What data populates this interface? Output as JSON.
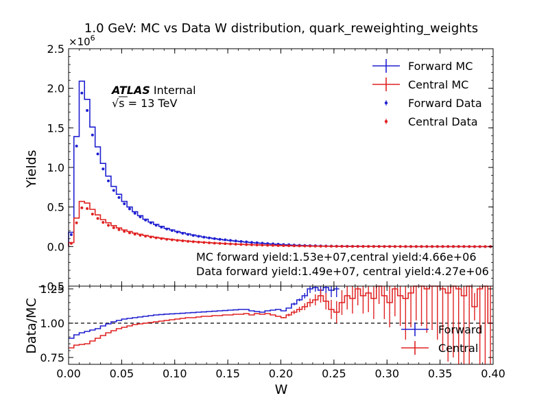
{
  "chart_data": [
    {
      "type": "line",
      "panel": "main",
      "title": "1.0 GeV: MC vs Data W distribution, quark_reweighting_weights",
      "ylabel": "Yields",
      "y_multiplier": "×10",
      "y_multiplier_exp": "6",
      "ylim": [
        -0.5,
        2.5
      ],
      "xlim": [
        0.0,
        0.4
      ],
      "yticks": [
        "−0.5",
        "0.0",
        "0.5",
        "1.0",
        "1.5",
        "2.0",
        "2.5"
      ],
      "ytick_values": [
        -0.5,
        0.0,
        0.5,
        1.0,
        1.5,
        2.0,
        2.5
      ],
      "bin_edges": [
        0.0,
        0.005,
        0.01,
        0.015,
        0.02,
        0.025,
        0.03,
        0.035,
        0.04,
        0.045,
        0.05,
        0.055,
        0.06,
        0.065,
        0.07,
        0.075,
        0.08,
        0.085,
        0.09,
        0.095,
        0.1,
        0.105,
        0.11,
        0.115,
        0.12,
        0.125,
        0.13,
        0.135,
        0.14,
        0.145,
        0.15,
        0.155,
        0.16,
        0.165,
        0.17,
        0.175,
        0.18,
        0.185,
        0.19,
        0.195,
        0.2,
        0.205,
        0.21,
        0.215,
        0.22,
        0.225,
        0.23,
        0.235,
        0.24,
        0.245,
        0.25,
        0.255,
        0.26,
        0.265,
        0.27,
        0.275,
        0.28,
        0.285,
        0.29,
        0.295,
        0.3,
        0.305,
        0.31,
        0.315,
        0.32,
        0.325,
        0.33,
        0.335,
        0.34,
        0.345,
        0.35,
        0.355,
        0.36,
        0.365,
        0.37,
        0.375,
        0.38,
        0.385,
        0.39,
        0.395,
        0.4
      ],
      "series": [
        {
          "name": "Forward MC",
          "kind": "step",
          "color": "#1f1fd0",
          "values": [
            0.18,
            1.39,
            2.09,
            1.86,
            1.51,
            1.26,
            1.05,
            0.89,
            0.76,
            0.66,
            0.57,
            0.5,
            0.44,
            0.39,
            0.345,
            0.31,
            0.28,
            0.255,
            0.23,
            0.21,
            0.19,
            0.175,
            0.16,
            0.145,
            0.133,
            0.12,
            0.11,
            0.1,
            0.091,
            0.083,
            0.076,
            0.069,
            0.062,
            0.056,
            0.05,
            0.045,
            0.04,
            0.035,
            0.031,
            0.027,
            0.023,
            0.02,
            0.017,
            0.014,
            0.012,
            0.01,
            0.008,
            0.007,
            0.006,
            0.005,
            0.004,
            0.0035,
            0.003,
            0.0025,
            0.002,
            0.0018,
            0.0015,
            0.0013,
            0.0011,
            0.001,
            0.0009,
            0.0008,
            0.0007,
            0.0006,
            0.0005,
            0.0005,
            0.0004,
            0.0004,
            0.0003,
            0.0003,
            0.0003,
            0.0002,
            0.0002,
            0.0002,
            0.0002,
            0.0001,
            0.0001,
            0.0001,
            0.0001,
            0.0001
          ]
        },
        {
          "name": "Central MC",
          "kind": "step",
          "color": "#e02020",
          "values": [
            0.05,
            0.36,
            0.57,
            0.55,
            0.47,
            0.4,
            0.34,
            0.3,
            0.265,
            0.235,
            0.21,
            0.19,
            0.17,
            0.155,
            0.14,
            0.128,
            0.116,
            0.106,
            0.097,
            0.089,
            0.082,
            0.075,
            0.069,
            0.063,
            0.058,
            0.053,
            0.049,
            0.045,
            0.041,
            0.037,
            0.034,
            0.031,
            0.028,
            0.025,
            0.023,
            0.021,
            0.019,
            0.017,
            0.015,
            0.013,
            0.012,
            0.01,
            0.009,
            0.008,
            0.007,
            0.006,
            0.005,
            0.0045,
            0.004,
            0.0035,
            0.003,
            0.0026,
            0.0023,
            0.002,
            0.0018,
            0.0016,
            0.0014,
            0.0012,
            0.0011,
            0.001,
            0.0009,
            0.0008,
            0.0007,
            0.0006,
            0.0005,
            0.0005,
            0.0004,
            0.0004,
            0.0003,
            0.0003,
            0.0003,
            0.0002,
            0.0002,
            0.0002,
            0.0002,
            0.0001,
            0.0001,
            0.0001,
            0.0001,
            0.0001
          ]
        },
        {
          "name": "Forward Data",
          "kind": "points",
          "color": "#1f1fd0",
          "values": [
            0.15,
            1.27,
            1.94,
            1.72,
            1.41,
            1.17,
            0.98,
            0.83,
            0.71,
            0.62,
            0.54,
            0.475,
            0.42,
            0.375,
            0.335,
            0.3,
            0.27,
            0.245,
            0.222,
            0.202,
            0.184,
            0.168,
            0.154,
            0.141,
            0.13,
            0.119,
            0.109,
            0.1,
            0.092,
            0.085,
            0.078,
            0.071,
            0.065,
            0.059,
            0.053,
            0.048,
            0.043,
            0.038,
            0.034,
            0.03,
            0.026,
            0.023,
            0.019,
            0.016,
            0.014,
            0.012,
            0.01,
            0.0085,
            0.007,
            0.006,
            0.005,
            0.004,
            0.0035,
            0.003,
            0.0025,
            0.002,
            0.0018,
            0.0015,
            0.0013,
            0.0011,
            0.001,
            0.0009,
            0.0008,
            0.0007,
            0.0006,
            0.0005,
            0.0005,
            0.0004,
            0.0004,
            0.0003,
            0.0003,
            0.0003,
            0.0002,
            0.0002,
            0.0002,
            0.0002,
            0.0001,
            0.0001,
            0.0001,
            0.0001
          ]
        },
        {
          "name": "Central Data",
          "kind": "points",
          "color": "#e02020",
          "values": [
            0.04,
            0.3,
            0.49,
            0.48,
            0.41,
            0.355,
            0.305,
            0.268,
            0.238,
            0.213,
            0.191,
            0.173,
            0.157,
            0.143,
            0.131,
            0.12,
            0.11,
            0.1,
            0.092,
            0.085,
            0.078,
            0.072,
            0.066,
            0.061,
            0.056,
            0.052,
            0.047,
            0.043,
            0.04,
            0.036,
            0.033,
            0.03,
            0.027,
            0.025,
            0.022,
            0.02,
            0.018,
            0.016,
            0.015,
            0.013,
            0.012,
            0.01,
            0.009,
            0.008,
            0.007,
            0.006,
            0.005,
            0.0045,
            0.004,
            0.0035,
            0.003,
            0.0026,
            0.0023,
            0.002,
            0.0018,
            0.0016,
            0.0014,
            0.0012,
            0.0011,
            0.001,
            0.0009,
            0.0008,
            0.0007,
            0.0006,
            0.0005,
            0.0005,
            0.0004,
            0.0004,
            0.0003,
            0.0003,
            0.0003,
            0.0002,
            0.0002,
            0.0002,
            0.0002,
            0.0001,
            0.0001,
            0.0001,
            0.0001,
            0.0001
          ]
        }
      ],
      "legend": {
        "placement": "top-right",
        "entries": [
          "Forward MC",
          "Central MC",
          "Forward Data",
          "Central Data"
        ]
      },
      "atlas_label": "ATLAS",
      "atlas_sublabel": "Internal",
      "energy_label_sqrt": "√s",
      "energy_label_rest": " =  13 TeV",
      "annotations": [
        "MC forward yield:1.53e+07,central yield:4.66e+06",
        "Data forward yield:1.49e+07, central yield:4.27e+06"
      ]
    },
    {
      "type": "line",
      "panel": "ratio",
      "xlabel": "W",
      "ylabel": "Data/MC",
      "xlim": [
        0.0,
        0.4
      ],
      "ylim": [
        0.7,
        1.27
      ],
      "xticks": [
        "0.00",
        "0.05",
        "0.10",
        "0.15",
        "0.20",
        "0.25",
        "0.30",
        "0.35",
        "0.40"
      ],
      "xtick_values": [
        0.0,
        0.05,
        0.1,
        0.15,
        0.2,
        0.25,
        0.3,
        0.35,
        0.4
      ],
      "yticks": [
        "0.75",
        "1.00",
        "1.25"
      ],
      "ytick_values": [
        0.75,
        1.0,
        1.25
      ],
      "reference_line": 1.0,
      "series": [
        {
          "name": "Forward",
          "color": "#1f1fd0",
          "values": [
            0.89,
            0.915,
            0.93,
            0.94,
            0.95,
            0.96,
            0.98,
            0.995,
            1.01,
            1.02,
            1.03,
            1.035,
            1.04,
            1.045,
            1.05,
            1.055,
            1.06,
            1.063,
            1.066,
            1.068,
            1.07,
            1.072,
            1.075,
            1.077,
            1.08,
            1.082,
            1.085,
            1.087,
            1.09,
            1.092,
            1.095,
            1.097,
            1.1,
            1.1,
            1.09,
            1.085,
            1.08,
            1.09,
            1.095,
            1.1,
            1.09,
            1.11,
            1.14,
            1.17,
            1.2,
            1.25,
            1.26,
            1.24,
            1.26,
            1.24,
            1.25,
            null,
            null,
            null,
            null,
            null,
            null,
            null,
            null,
            null,
            null,
            null,
            null,
            null,
            null,
            null,
            null,
            null,
            null,
            null,
            null,
            null,
            null,
            null,
            null,
            null,
            null,
            null,
            null,
            null
          ],
          "errors": [
            0,
            0,
            0,
            0,
            0,
            0,
            0,
            0,
            0,
            0,
            0,
            0,
            0,
            0,
            0,
            0,
            0,
            0,
            0,
            0,
            0,
            0,
            0,
            0,
            0,
            0,
            0,
            0,
            0,
            0,
            0,
            0,
            0,
            0,
            0,
            0,
            0,
            0,
            0,
            0,
            0,
            0,
            0.01,
            0.01,
            0.02,
            0.03,
            0.03,
            0.04,
            0.05,
            0.05,
            0.06,
            0,
            0,
            0,
            0,
            0,
            0,
            0,
            0,
            0,
            0,
            0,
            0,
            0,
            0,
            0,
            0,
            0,
            0,
            0,
            0,
            0,
            0,
            0,
            0,
            0,
            0,
            0,
            0,
            0
          ]
        },
        {
          "name": "Central",
          "color": "#e02020",
          "values": [
            0.82,
            0.84,
            0.845,
            0.85,
            0.87,
            0.89,
            0.91,
            0.93,
            0.945,
            0.96,
            0.97,
            0.98,
            0.99,
            0.995,
            1.0,
            1.005,
            1.01,
            1.015,
            1.02,
            1.025,
            1.03,
            1.035,
            1.04,
            1.04,
            1.045,
            1.05,
            1.05,
            1.055,
            1.055,
            1.06,
            1.06,
            1.065,
            1.065,
            1.07,
            1.06,
            1.07,
            1.065,
            1.07,
            1.06,
            1.05,
            1.04,
            1.06,
            1.08,
            1.1,
            1.12,
            1.15,
            1.17,
            1.2,
            1.16,
            1.1,
            1.08,
            1.15,
            1.2,
            1.18,
            1.25,
            1.2,
            1.22,
            1.18,
            1.3,
            1.2,
            1.15,
            1.25,
            1.2,
            1.18,
            1.22,
            1.3,
            1.28,
            1.25,
            1.3,
            1.28,
            1.25,
            1.22,
            1.3,
            1.25,
            1.2,
            1.28,
            1.12,
            1.25,
            1.3,
            1.0
          ],
          "errors": [
            0,
            0,
            0,
            0,
            0,
            0,
            0,
            0,
            0,
            0,
            0,
            0,
            0,
            0,
            0,
            0,
            0,
            0,
            0,
            0,
            0,
            0,
            0,
            0,
            0,
            0,
            0,
            0,
            0,
            0,
            0,
            0,
            0,
            0,
            0,
            0,
            0,
            0,
            0,
            0,
            0.005,
            0.01,
            0.015,
            0.02,
            0.025,
            0.03,
            0.04,
            0.05,
            0.06,
            0.07,
            0.08,
            0.09,
            0.1,
            0.11,
            0.12,
            0.13,
            0.14,
            0.15,
            0.16,
            0.17,
            0.18,
            0.2,
            0.22,
            0.3,
            0.25,
            0.28,
            0.3,
            0.32,
            0.35,
            0.4,
            0.45,
            0.5,
            0.55,
            0.6,
            0.65,
            0.7,
            0.1,
            0.75,
            0.8,
            0.3
          ]
        }
      ],
      "legend": {
        "placement": "bottom-right",
        "entries": [
          "Forward",
          "Central"
        ]
      }
    }
  ]
}
